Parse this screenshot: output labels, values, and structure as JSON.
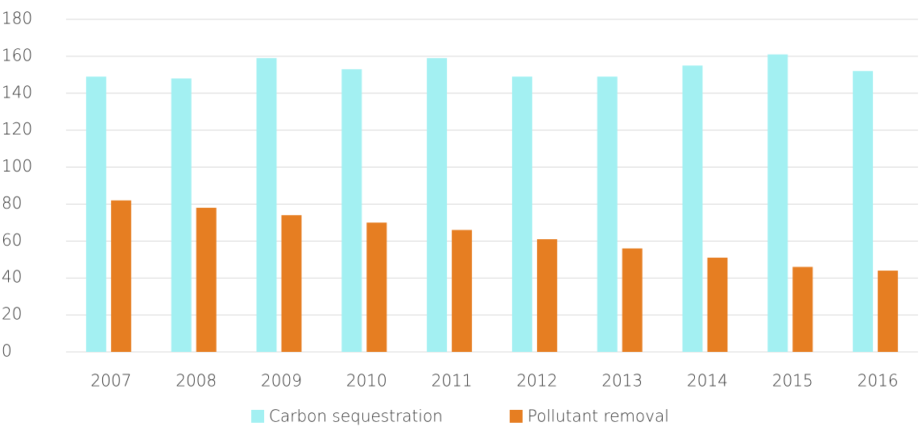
{
  "chart_data": {
    "type": "bar",
    "categories": [
      "2007",
      "2008",
      "2009",
      "2010",
      "2011",
      "2012",
      "2013",
      "2014",
      "2015",
      "2016"
    ],
    "series": [
      {
        "name": "Carbon sequestration",
        "color": "#a3f0f2",
        "values": [
          149,
          148,
          159,
          153,
          159,
          149,
          149,
          155,
          161,
          152
        ]
      },
      {
        "name": "Pollutant removal",
        "color": "#e67e22",
        "values": [
          82,
          78,
          74,
          70,
          66,
          61,
          56,
          51,
          46,
          44
        ]
      }
    ],
    "ylim": [
      0,
      180
    ],
    "yticks": [
      0,
      20,
      40,
      60,
      80,
      100,
      120,
      140,
      160,
      180
    ],
    "grid": true,
    "legend": "bottom"
  }
}
